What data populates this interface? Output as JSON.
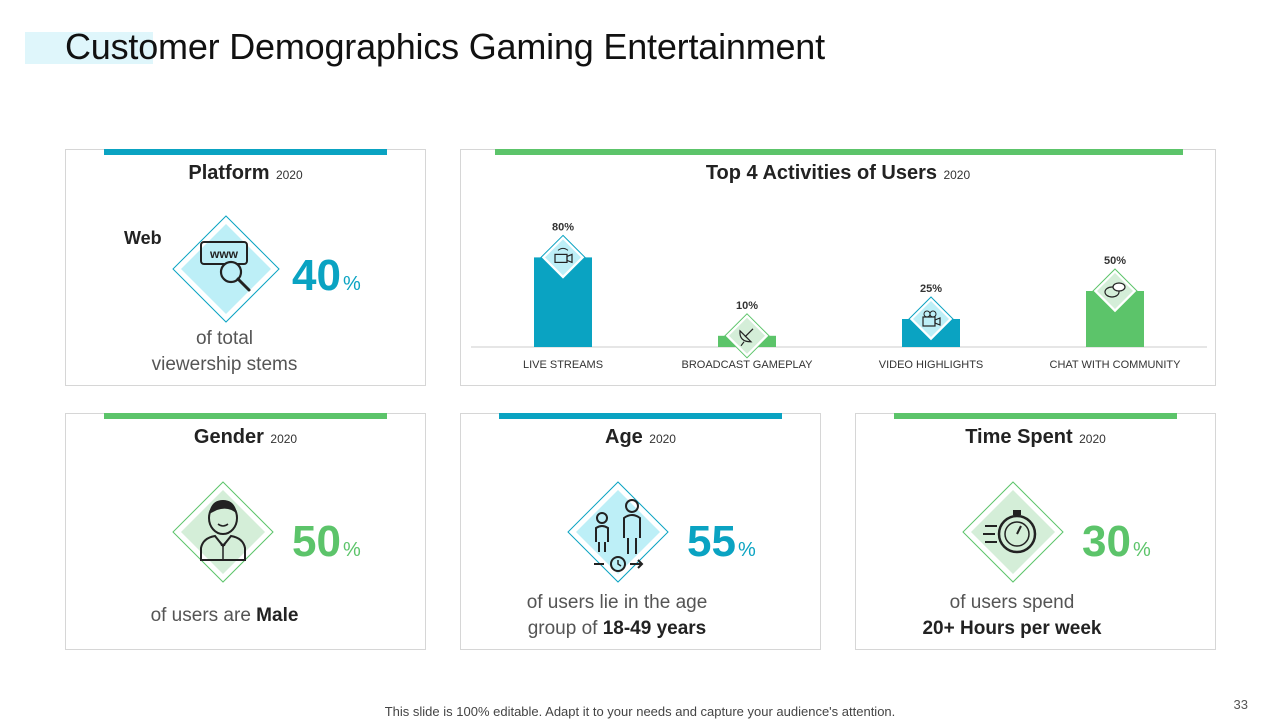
{
  "title": "Customer Demographics Gaming Entertainment",
  "colors": {
    "blue": "#0aa3c2",
    "green": "#5cc46a",
    "light_blue": "#dff6fb",
    "light_green": "#d4eed8"
  },
  "platform": {
    "title": "Platform",
    "year": "2020",
    "label": "Web",
    "value": "40",
    "unit": "%",
    "desc_line1": "of total",
    "desc_line2": "viewership stems",
    "icon": "web-search-icon"
  },
  "activities": {
    "title": "Top 4 Activities of Users",
    "year": "2020"
  },
  "gender": {
    "title": "Gender",
    "year": "2020",
    "value": "50",
    "unit": "%",
    "desc_prefix": "of users are ",
    "desc_bold": "Male",
    "icon": "man-icon"
  },
  "age": {
    "title": "Age",
    "year": "2020",
    "value": "55",
    "unit": "%",
    "desc_line1": "of users lie in the age",
    "desc_line2_prefix": "group of ",
    "desc_line2_bold": "18-49 years",
    "icon": "age-growth-icon"
  },
  "time_spent": {
    "title": "Time Spent",
    "year": "2020",
    "value": "30",
    "unit": "%",
    "desc_line1": "of users spend",
    "desc_line2_bold": "20+ Hours per week",
    "icon": "stopwatch-icon"
  },
  "chart_data": {
    "type": "bar",
    "categories": [
      "LIVE STREAMS",
      "BROADCAST GAMEPLAY",
      "VIDEO HIGHLIGHTS",
      "CHAT WITH COMMUNITY"
    ],
    "values": [
      80,
      10,
      25,
      50
    ],
    "labels": [
      "80%",
      "10%",
      "25%",
      "50%"
    ],
    "bar_colors": [
      "#0aa3c2",
      "#5cc46a",
      "#0aa3c2",
      "#5cc46a"
    ],
    "icons": [
      "video-stream-icon",
      "satellite-dish-icon",
      "video-camera-icon",
      "chat-bubbles-icon"
    ],
    "ylim": [
      0,
      100
    ],
    "grid": false
  },
  "footer": "This slide is 100% editable. Adapt it to your needs and capture your audience's attention.",
  "page_number": "33"
}
